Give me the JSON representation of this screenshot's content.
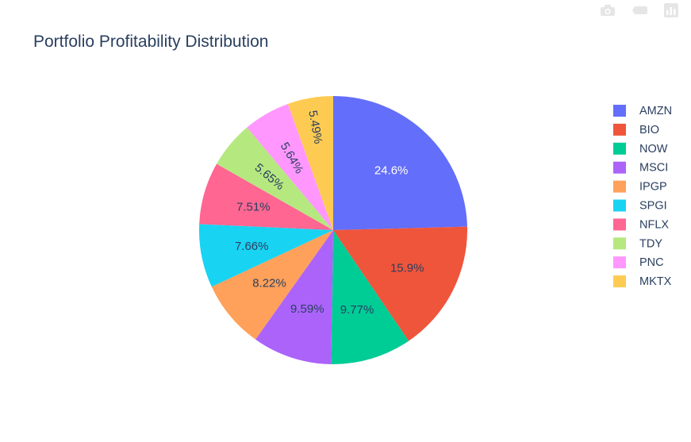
{
  "modebar": {
    "camera_icon": "camera-icon",
    "zoom_icon": "zoom-icon",
    "plotly_icon": "plotly-logo-icon"
  },
  "chart_data": {
    "type": "pie",
    "title": "Portfolio Profitability Distribution",
    "labels": [
      "AMZN",
      "BIO",
      "NOW",
      "MSCI",
      "IPGP",
      "SPGI",
      "NFLX",
      "TDY",
      "PNC",
      "MKTX"
    ],
    "values": [
      24.6,
      15.9,
      9.77,
      9.59,
      8.22,
      7.66,
      7.51,
      5.65,
      5.64,
      5.49
    ],
    "text_labels": [
      "24.6%",
      "15.9%",
      "9.77%",
      "9.59%",
      "8.22%",
      "7.66%",
      "7.51%",
      "5.65%",
      "5.64%",
      "5.49%"
    ],
    "colors": [
      "#636efa",
      "#EF553B",
      "#00cc96",
      "#ab63fa",
      "#FFA15A",
      "#19d3f3",
      "#FF6692",
      "#B6E880",
      "#FF97FF",
      "#FECB52"
    ],
    "direction": "counterclockwise",
    "rotation": "starts at 12 o'clock",
    "legend_placement": "right"
  }
}
